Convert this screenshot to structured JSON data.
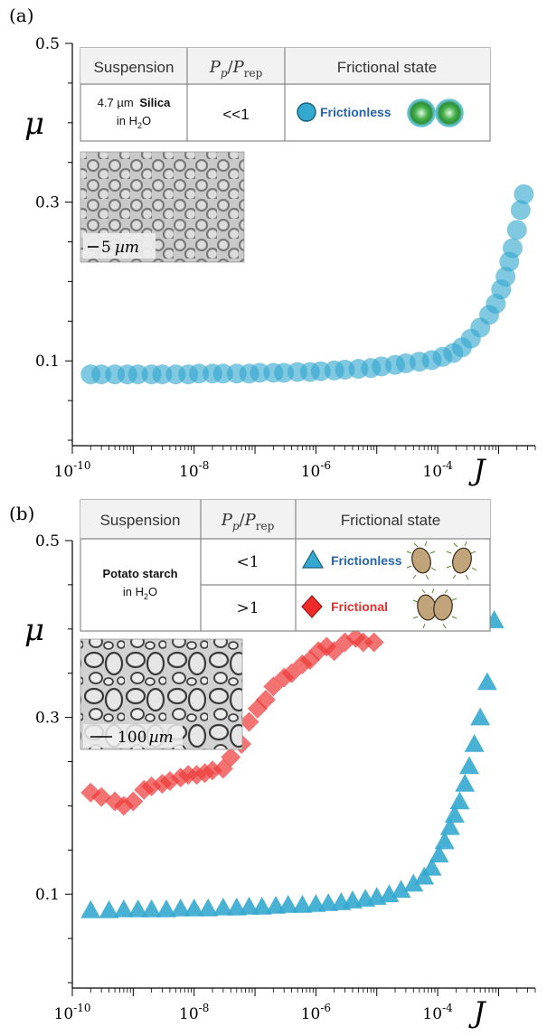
{
  "panels": [
    {
      "panel_label": "(a)",
      "table": {
        "headers": [
          "Suspension",
          "P_p/P_rep",
          "Frictional state"
        ],
        "rows": [
          {
            "suspension_size": "4.7 µm",
            "suspension_material": "Silica",
            "suspension_medium_prefix": "in H",
            "suspension_medium_sub": "2",
            "suspension_medium_suffix": "O",
            "ratio": "<<1",
            "state": "Frictionless",
            "state_color": "#2463ad",
            "marker": "circle"
          }
        ]
      },
      "inset": {
        "scale_bar": "5",
        "scale_unit": "µm",
        "description": "micrograph of silica particles"
      }
    },
    {
      "panel_label": "(b)",
      "table": {
        "headers": [
          "Suspension",
          "P_p/P_rep",
          "Frictional state"
        ],
        "suspension_material": "Potato starch",
        "suspension_medium_prefix": "in H",
        "suspension_medium_sub": "2",
        "suspension_medium_suffix": "O",
        "rows": [
          {
            "ratio": "<1",
            "state": "Frictionless",
            "state_color": "#2463ad",
            "marker": "triangle"
          },
          {
            "ratio": ">1",
            "state": "Frictional",
            "state_color": "#e8312d",
            "marker": "diamond"
          }
        ]
      },
      "inset": {
        "scale_bar": "100",
        "scale_unit": "µm",
        "description": "micrograph of potato starch particles"
      }
    }
  ],
  "colors": {
    "frictionless_marker": "#34a8cf",
    "frictional_marker": "#ef3b3b",
    "frictionless_text": "#2463ad",
    "frictional_text": "#e8312d"
  },
  "chart_data": [
    {
      "type": "scatter",
      "title": "",
      "xlabel": "J",
      "ylabel": "μ",
      "xscale": "log",
      "xlim": [
        1e-10,
        0.004
      ],
      "ylim": [
        0.0,
        0.5
      ],
      "xticks": [
        "10^-10",
        "10^-8",
        "10^-6",
        "10^-4"
      ],
      "yticks": [
        "0.1",
        "0.3",
        "0.5"
      ],
      "series": [
        {
          "name": "Frictionless",
          "marker": "circle",
          "color": "#34a8cf",
          "x": [
            2e-10,
            3e-10,
            5e-10,
            8e-10,
            1.2e-09,
            2e-09,
            3e-09,
            5e-09,
            8e-09,
            1.2e-08,
            2e-08,
            3e-08,
            5e-08,
            8e-08,
            1.2e-07,
            2e-07,
            3e-07,
            5e-07,
            8e-07,
            1.2e-06,
            2e-06,
            3e-06,
            5e-06,
            8e-06,
            1.2e-05,
            2e-05,
            3e-05,
            5e-05,
            8e-05,
            0.00012,
            0.00018,
            0.00025,
            0.00035,
            0.0005,
            0.0007,
            0.0009,
            0.0011,
            0.0013,
            0.0015,
            0.0017,
            0.002,
            0.0023,
            0.0026
          ],
          "y": [
            0.083,
            0.083,
            0.083,
            0.083,
            0.083,
            0.083,
            0.083,
            0.083,
            0.083,
            0.084,
            0.084,
            0.084,
            0.084,
            0.084,
            0.085,
            0.085,
            0.085,
            0.086,
            0.086,
            0.087,
            0.088,
            0.089,
            0.09,
            0.091,
            0.093,
            0.095,
            0.097,
            0.099,
            0.101,
            0.105,
            0.11,
            0.117,
            0.128,
            0.142,
            0.158,
            0.172,
            0.19,
            0.206,
            0.225,
            0.242,
            0.265,
            0.29,
            0.31
          ]
        }
      ]
    },
    {
      "type": "scatter",
      "title": "",
      "xlabel": "J",
      "ylabel": "μ",
      "xscale": "log",
      "xlim": [
        1e-10,
        0.004
      ],
      "ylim": [
        0.0,
        0.5
      ],
      "xticks": [
        "10^-10",
        "10^-8",
        "10^-6",
        "10^-4"
      ],
      "yticks": [
        "0.1",
        "0.3",
        "0.5"
      ],
      "series": [
        {
          "name": "Frictional",
          "marker": "diamond",
          "color": "#ef3b3b",
          "x": [
            2e-10,
            3e-10,
            5e-10,
            7e-10,
            1e-09,
            1.5e-09,
            2e-09,
            3e-09,
            4e-09,
            6e-09,
            8e-09,
            1.1e-08,
            1.5e-08,
            2e-08,
            3e-08,
            4e-08,
            6e-08,
            8e-08,
            1.1e-07,
            1.5e-07,
            2e-07,
            3e-07,
            4e-07,
            6e-07,
            8e-07,
            1.1e-06,
            1.5e-06,
            2e-06,
            3e-06,
            4.5e-06,
            6e-06,
            9e-06
          ],
          "y": [
            0.215,
            0.21,
            0.205,
            0.2,
            0.205,
            0.218,
            0.222,
            0.225,
            0.228,
            0.232,
            0.235,
            0.235,
            0.237,
            0.24,
            0.242,
            0.255,
            0.27,
            0.295,
            0.31,
            0.32,
            0.335,
            0.345,
            0.35,
            0.36,
            0.365,
            0.375,
            0.38,
            0.375,
            0.385,
            0.39,
            0.385,
            0.385
          ]
        },
        {
          "name": "Frictionless",
          "marker": "triangle",
          "color": "#34a8cf",
          "x": [
            2e-10,
            4e-10,
            7e-10,
            1.2e-09,
            2e-09,
            3.5e-09,
            6e-09,
            1e-08,
            1.7e-08,
            3e-08,
            5e-08,
            8e-08,
            1.3e-07,
            2.2e-07,
            3.5e-07,
            6e-07,
            1e-06,
            1.6e-06,
            2.6e-06,
            4e-06,
            6.5e-06,
            1e-05,
            1.6e-05,
            2.5e-05,
            4e-05,
            6e-05,
            8e-05,
            0.000105,
            0.00013,
            0.00016,
            0.00019,
            0.00023,
            0.00028,
            0.00033,
            0.0004,
            0.0005,
            0.00065,
            0.00085
          ],
          "y": [
            0.082,
            0.082,
            0.083,
            0.083,
            0.083,
            0.083,
            0.084,
            0.084,
            0.084,
            0.085,
            0.085,
            0.086,
            0.086,
            0.087,
            0.088,
            0.088,
            0.089,
            0.09,
            0.091,
            0.093,
            0.095,
            0.097,
            0.1,
            0.105,
            0.112,
            0.12,
            0.13,
            0.145,
            0.16,
            0.176,
            0.19,
            0.205,
            0.225,
            0.245,
            0.27,
            0.3,
            0.34,
            0.41
          ]
        }
      ]
    }
  ]
}
